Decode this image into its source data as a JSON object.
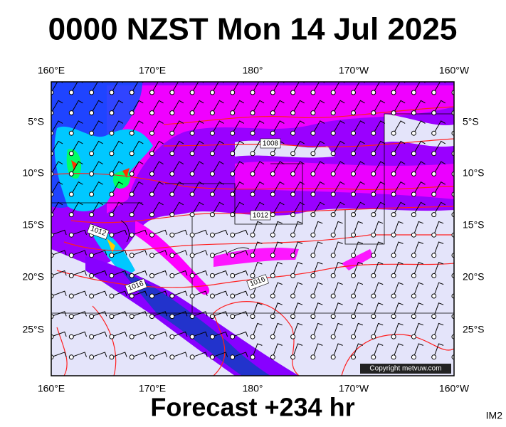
{
  "title": "0000 NZST Mon 14 Jul 2025",
  "footer": "Forecast +234 hr",
  "corner_label": "IM2",
  "copyright": "Copyright metvuw.com",
  "axes": {
    "top": [
      "160°E",
      "170°E",
      "180°",
      "170°W",
      "160°W"
    ],
    "bottom": [
      "160°E",
      "170°E",
      "180°",
      "170°W",
      "160°W"
    ],
    "left": [
      "5°S",
      "10°S",
      "15°S",
      "20°S",
      "25°S"
    ],
    "right": [
      "5°S",
      "10°S",
      "15°S",
      "20°S",
      "25°S"
    ]
  },
  "isobar_labels": [
    "1008",
    "1012",
    "1012",
    "1016",
    "1016"
  ]
}
